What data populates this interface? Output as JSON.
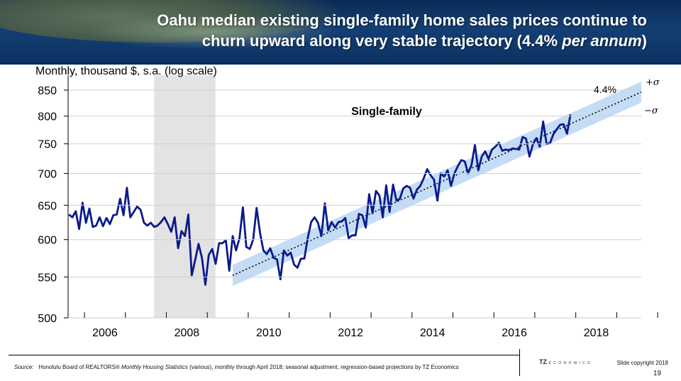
{
  "header": {
    "title_line1": "Oahu median existing single-family home sales prices continue to",
    "title_line2_pre": "churn upward along very stable trajectory (4.4% ",
    "title_line2_italic": "per annum",
    "title_line2_post": ")"
  },
  "footer": {
    "source_label": "Source:",
    "source_pre": "Honolulu Board of REALTORS® ",
    "source_pub": "Monthly Housing Statistics",
    "source_post": " (various), monthly through April 2018; seasonal adjustment, regression-based projections by TZ Economics",
    "logo_text": "TZ",
    "logo_small": "E C O N O M I C S",
    "copyright": "Slide copyright 2018",
    "page_number": "19"
  },
  "colors": {
    "series": "#0a1a8a",
    "band": "#c5dcf6",
    "recession": "#e3e3e3",
    "trend": "#000000"
  },
  "chart_data": {
    "type": "line",
    "ylabel": "Monthly, thousand $, s.a. (log scale)",
    "scale": "log",
    "ylim": [
      500,
      880
    ],
    "yticks": [
      500,
      550,
      600,
      650,
      700,
      750,
      800,
      850
    ],
    "xlim": [
      2005.6,
      2019.6
    ],
    "xticks": [
      2006,
      2008,
      2010,
      2012,
      2014,
      2016,
      2018
    ],
    "series_label": "Single-family",
    "recession_shading": [
      2007.7,
      2009.2
    ],
    "trend": {
      "label": "4.4%",
      "growth_rate": 0.044,
      "start_x": 2009.62,
      "start_y": 552,
      "end_x": 2019.6,
      "end_y": 846,
      "band_upper_label": "+σ",
      "band_lower_label": "−σ",
      "band_factor": 1.025
    },
    "series": [
      {
        "values": [
          636,
          632,
          641,
          615,
          654,
          624,
          645,
          618,
          620,
          632,
          619,
          631,
          622,
          635,
          636,
          660,
          635,
          677,
          632,
          640,
          648,
          643,
          624,
          620,
          624,
          618,
          620,
          625,
          632,
          622,
          611,
          632,
          588,
          612,
          605,
          636,
          552,
          572,
          594,
          575,
          540,
          579,
          587,
          567,
          595,
          595,
          599,
          558,
          605,
          585,
          602,
          647,
          590,
          587,
          600,
          646,
          610,
          585,
          580,
          588,
          575,
          573,
          547,
          585,
          578,
          582,
          566,
          562,
          574,
          574,
          602,
          625,
          632,
          624,
          605,
          653,
          613,
          625,
          617,
          625,
          626,
          631,
          602,
          606,
          606,
          637,
          635,
          617,
          667,
          638,
          672,
          665,
          632,
          681,
          640,
          682,
          657,
          660,
          676,
          680,
          677,
          660,
          674,
          680,
          692,
          707,
          697,
          690,
          657,
          700,
          695,
          705,
          680,
          700,
          712,
          722,
          720,
          700,
          714,
          748,
          705,
          728,
          737,
          724,
          740,
          745,
          752,
          738,
          740,
          739,
          742,
          741,
          740,
          762,
          759,
          728,
          749,
          760,
          745,
          790,
          750,
          751,
          767,
          776,
          784,
          785,
          768,
          803
        ]
      }
    ]
  }
}
